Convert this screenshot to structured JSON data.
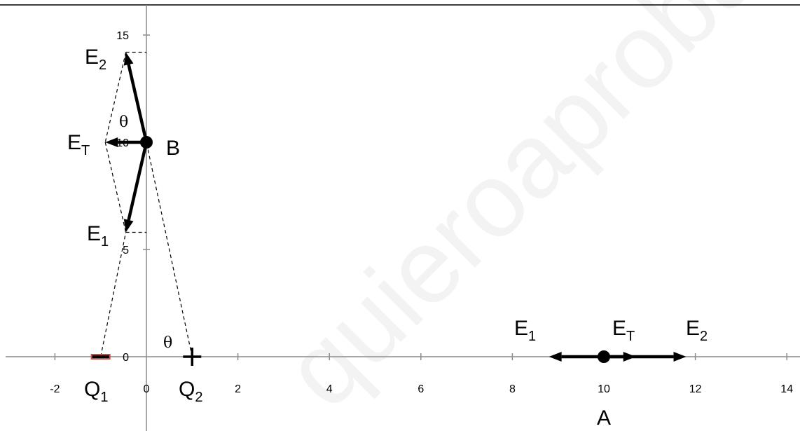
{
  "colors": {
    "axis": "#8c8c8c",
    "vector": "#000000",
    "negative_charge": "#c0504d",
    "watermark": "#000000"
  },
  "axes": {
    "x_ticks": [
      {
        "value": -2,
        "label": "-2"
      },
      {
        "value": 0,
        "label": "0"
      },
      {
        "value": 2,
        "label": "2"
      },
      {
        "value": 4,
        "label": "4"
      },
      {
        "value": 6,
        "label": "6"
      },
      {
        "value": 8,
        "label": "8"
      },
      {
        "value": 10,
        "label": "10"
      },
      {
        "value": 12,
        "label": "12"
      },
      {
        "value": 14,
        "label": "14"
      }
    ],
    "y_ticks": [
      {
        "value": 0,
        "label": "0"
      },
      {
        "value": 5,
        "label": "5"
      },
      {
        "value": 10,
        "label": "10"
      },
      {
        "value": 15,
        "label": "15"
      }
    ]
  },
  "charges": {
    "q1": {
      "x": -1,
      "y": 0,
      "sign": "negative",
      "letter": "Q",
      "sub": "1"
    },
    "q2": {
      "x": 1,
      "y": 0,
      "sign": "positive",
      "letter": "Q",
      "sub": "2"
    }
  },
  "points": {
    "A": {
      "x": 10,
      "y": 0,
      "label": "A"
    },
    "B": {
      "x": 0,
      "y": 10,
      "label": "B"
    }
  },
  "vectors_B": {
    "E1": {
      "letter": "E",
      "sub": "1",
      "tip": [
        -0.45,
        5.8
      ]
    },
    "E2": {
      "letter": "E",
      "sub": "2",
      "tip": [
        -0.45,
        14.2
      ]
    },
    "ET": {
      "letter": "E",
      "sub": "T",
      "tip": [
        -0.9,
        10
      ]
    }
  },
  "vectors_A": {
    "E1": {
      "letter": "E",
      "sub": "1",
      "tip": [
        8.8,
        0
      ]
    },
    "E2": {
      "letter": "E",
      "sub": "2",
      "tip": [
        11.8,
        0
      ]
    },
    "ET": {
      "letter": "E",
      "sub": "T",
      "tip": [
        10.7,
        0
      ]
    }
  },
  "angles": {
    "theta_symbol": "θ"
  },
  "watermark": {
    "text": "quieroaprobar.es"
  }
}
